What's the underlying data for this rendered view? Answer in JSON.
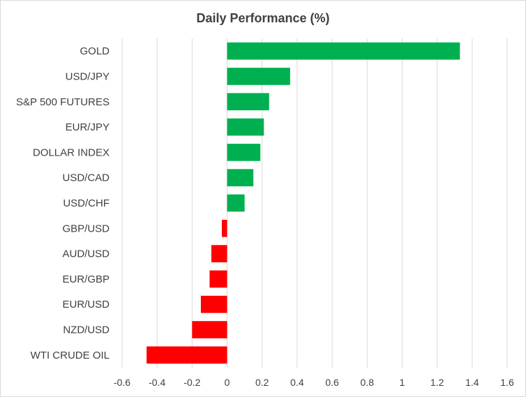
{
  "chart_data": {
    "type": "bar",
    "orientation": "horizontal",
    "title": "Daily Performance (%)",
    "xlabel": "",
    "ylabel": "",
    "categories": [
      "GOLD",
      "USD/JPY",
      "S&P 500 FUTURES",
      "EUR/JPY",
      "DOLLAR INDEX",
      "USD/CAD",
      "USD/CHF",
      "GBP/USD",
      "AUD/USD",
      "EUR/GBP",
      "EUR/USD",
      "NZD/USD",
      "WTI CRUDE OIL"
    ],
    "values": [
      1.33,
      0.36,
      0.24,
      0.21,
      0.19,
      0.15,
      0.1,
      -0.03,
      -0.09,
      -0.1,
      -0.15,
      -0.2,
      -0.46
    ],
    "xlim": [
      -0.6,
      1.6
    ],
    "x_ticks": [
      -0.6,
      -0.4,
      -0.2,
      0,
      0.2,
      0.4,
      0.6,
      0.8,
      1,
      1.2,
      1.4,
      1.6
    ],
    "x_tick_labels": [
      "-0.6",
      "-0.4",
      "-0.2",
      "0",
      "0.2",
      "0.4",
      "0.6",
      "0.8",
      "1",
      "1.2",
      "1.4",
      "1.6"
    ],
    "grid": true,
    "legend": "none",
    "colors": {
      "positive": "#00b050",
      "negative": "#ff0000",
      "grid": "#d9d9d9",
      "text": "#404040"
    }
  }
}
